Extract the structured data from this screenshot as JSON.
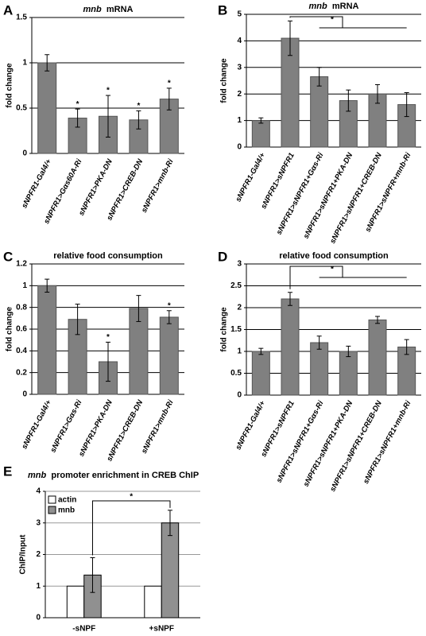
{
  "chart_data": [
    {
      "type": "bar",
      "panel": "A",
      "title_italic": "mnb",
      "title": "mRNA",
      "y_label": "fold change",
      "categories": [
        "sNPFR1-Gal4/+",
        "sNPFR1>Gαs60A-Ri",
        "sNPFR1>PKA-DN",
        "sNPFR1>CREB-DN",
        "sNPFR1>mnb-Ri"
      ],
      "values": [
        1.0,
        0.39,
        0.41,
        0.37,
        0.6
      ],
      "errors": [
        0.09,
        0.1,
        0.23,
        0.1,
        0.12
      ],
      "stars": [
        null,
        "*",
        "*",
        "*",
        "*"
      ],
      "color": "#808080",
      "ylim": [
        0,
        1.5
      ],
      "yticks": [
        0,
        0.5,
        1,
        1.5
      ],
      "grid": true
    },
    {
      "type": "bar",
      "panel": "B",
      "title_italic": "mnb",
      "title": "mRNA",
      "y_label": "fold change",
      "categories": [
        "sNPFR1-Gal4/+",
        "sNPFR1>sNPFR1",
        "sNPFR1>sNPFR1+Gαs-Ri",
        "sNPFR1>sNPFR1+PKA-DN",
        "sNPFR1>sNPFR1+CREB-DN",
        "sNPFR1>sNPFR+mnb-Ri"
      ],
      "values": [
        1.0,
        4.1,
        2.65,
        1.75,
        2.0,
        1.6
      ],
      "errors": [
        0.1,
        0.65,
        0.35,
        0.4,
        0.35,
        0.45
      ],
      "bracket_label": "*",
      "color": "#808080",
      "ylim": [
        0,
        5
      ],
      "yticks": [
        0,
        1,
        2,
        3,
        4,
        5
      ],
      "grid": true
    },
    {
      "type": "bar",
      "panel": "C",
      "title": "relative food consumption",
      "y_label": "fold change",
      "categories": [
        "sNPFR1-Gal4/+",
        "sNPFR1>Gαs-Ri",
        "sNPFR1>PKA-DN",
        "sNPFR1>CREB-DN",
        "sNPFR1>mnb-Ri"
      ],
      "values": [
        1.0,
        0.69,
        0.3,
        0.79,
        0.71
      ],
      "errors": [
        0.06,
        0.14,
        0.18,
        0.12,
        0.06
      ],
      "stars": [
        null,
        null,
        "*",
        null,
        "*"
      ],
      "color": "#808080",
      "ylim": [
        0,
        1.2
      ],
      "yticks": [
        0,
        0.2,
        0.4,
        0.6,
        0.8,
        1,
        1.2
      ],
      "grid": true
    },
    {
      "type": "bar",
      "panel": "D",
      "title": "relative food consumption",
      "y_label": "fold change",
      "categories": [
        "sNPFR1-Gal4/+",
        "sNPFR1>sNPFR1",
        "sNPFR1>sNPFR1+Gαs-Ri",
        "sNPFR1>sNPFR1+PKA-DN",
        "sNPFR1>sNPFR1+CREB-DN",
        "sNPFR1>sNPFR1+mnb-Ri"
      ],
      "values": [
        1.0,
        2.2,
        1.2,
        1.0,
        1.72,
        1.1
      ],
      "errors": [
        0.07,
        0.15,
        0.15,
        0.12,
        0.08,
        0.17
      ],
      "bracket_label": "*",
      "color": "#808080",
      "ylim": [
        0,
        3
      ],
      "yticks": [
        0,
        0.5,
        1,
        1.5,
        2,
        2.5,
        3
      ],
      "grid": true
    },
    {
      "type": "grouped_bar",
      "panel": "E",
      "title_italic": "mnb",
      "title": "promoter enrichment in CREB ChIP",
      "y_label": "ChIP/Input",
      "categories": [
        "-sNPF",
        "+sNPF"
      ],
      "series": [
        {
          "name": "actin",
          "color": "#ffffff",
          "values": [
            1,
            1
          ]
        },
        {
          "name": "mnb",
          "color": "#909090",
          "values": [
            1.35,
            3.0
          ],
          "errors": [
            0.55,
            0.4
          ]
        }
      ],
      "bracket_label": "*",
      "legend": "upper-left",
      "ylim": [
        0,
        4
      ],
      "yticks": [
        0,
        1,
        2,
        3,
        4
      ],
      "grid": true
    }
  ]
}
